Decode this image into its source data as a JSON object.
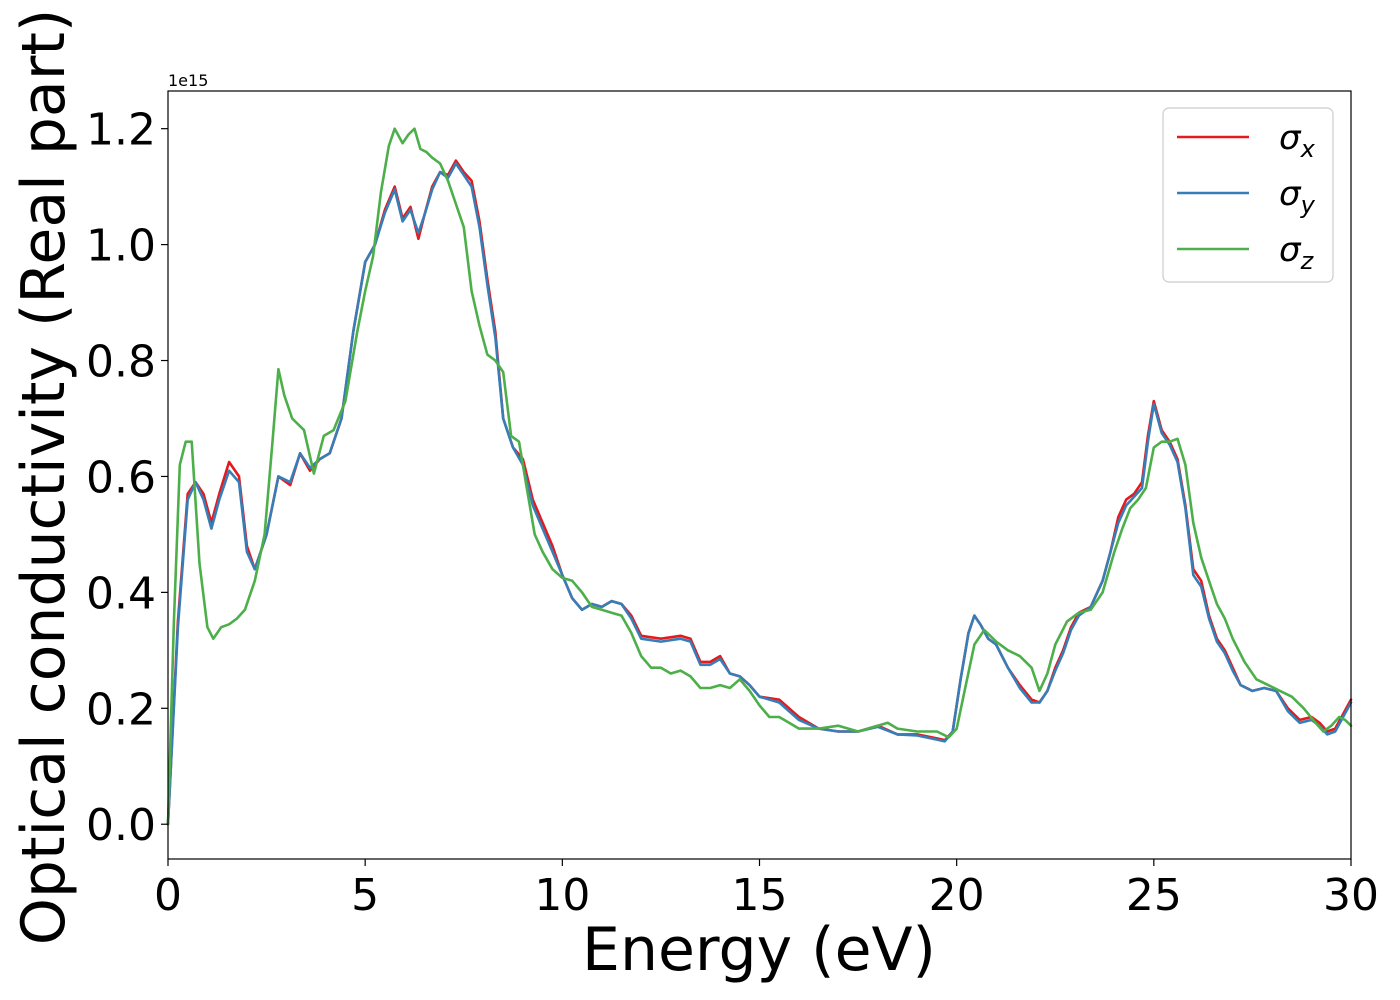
{
  "chart_data": {
    "type": "line",
    "title": "",
    "xlabel": "Energy (eV)",
    "ylabel": "Optical conductivity (Real part)",
    "y_offset_label": "1e15",
    "xlim": [
      0,
      30
    ],
    "ylim": [
      -0.06,
      1.265
    ],
    "xticks": [
      0,
      5,
      10,
      15,
      20,
      25,
      30
    ],
    "xtick_labels": [
      "0",
      "5",
      "10",
      "15",
      "20",
      "25",
      "30"
    ],
    "yticks": [
      0.0,
      0.2,
      0.4,
      0.6,
      0.8,
      1.0,
      1.2
    ],
    "ytick_labels": [
      "0.0",
      "0.2",
      "0.4",
      "0.6",
      "0.8",
      "1.0",
      "1.2"
    ],
    "grid": false,
    "legend_position": "top-right",
    "series": [
      {
        "name": "σx",
        "legend_symbol": "σ",
        "legend_sub": "x",
        "color": "#e41a1c",
        "x": [
          0,
          0.25,
          0.5,
          0.7,
          0.9,
          1.1,
          1.3,
          1.55,
          1.8,
          2.0,
          2.2,
          2.5,
          2.8,
          3.1,
          3.35,
          3.6,
          3.85,
          4.1,
          4.4,
          4.7,
          5.0,
          5.25,
          5.5,
          5.75,
          5.95,
          6.15,
          6.35,
          6.5,
          6.7,
          6.9,
          7.1,
          7.3,
          7.5,
          7.7,
          7.9,
          8.1,
          8.3,
          8.5,
          8.75,
          9.0,
          9.25,
          9.5,
          9.75,
          10.0,
          10.25,
          10.5,
          10.75,
          11.0,
          11.25,
          11.5,
          11.75,
          12.0,
          12.5,
          13.0,
          13.25,
          13.5,
          13.75,
          14.0,
          14.25,
          14.5,
          14.75,
          15.0,
          15.5,
          16.0,
          16.5,
          17.0,
          17.5,
          18.0,
          18.5,
          19.0,
          19.5,
          19.7,
          19.9,
          20.1,
          20.3,
          20.45,
          20.6,
          20.8,
          21.0,
          21.3,
          21.6,
          21.9,
          22.1,
          22.3,
          22.5,
          22.7,
          22.9,
          23.1,
          23.4,
          23.7,
          23.9,
          24.1,
          24.3,
          24.5,
          24.7,
          24.85,
          25.0,
          25.2,
          25.4,
          25.6,
          25.8,
          26.0,
          26.2,
          26.4,
          26.6,
          26.8,
          27.0,
          27.2,
          27.5,
          27.8,
          28.1,
          28.4,
          28.7,
          29.0,
          29.2,
          29.4,
          29.6,
          29.8,
          30.0
        ],
        "values": [
          0.0,
          0.35,
          0.57,
          0.59,
          0.57,
          0.52,
          0.57,
          0.625,
          0.6,
          0.48,
          0.44,
          0.5,
          0.6,
          0.585,
          0.64,
          0.61,
          0.63,
          0.64,
          0.7,
          0.85,
          0.97,
          1.0,
          1.06,
          1.1,
          1.045,
          1.065,
          1.01,
          1.05,
          1.1,
          1.125,
          1.12,
          1.145,
          1.125,
          1.11,
          1.04,
          0.94,
          0.85,
          0.7,
          0.65,
          0.63,
          0.56,
          0.52,
          0.48,
          0.43,
          0.39,
          0.37,
          0.38,
          0.375,
          0.385,
          0.38,
          0.36,
          0.325,
          0.32,
          0.325,
          0.32,
          0.28,
          0.28,
          0.29,
          0.26,
          0.255,
          0.24,
          0.22,
          0.215,
          0.185,
          0.165,
          0.16,
          0.16,
          0.17,
          0.155,
          0.155,
          0.148,
          0.145,
          0.16,
          0.25,
          0.33,
          0.36,
          0.345,
          0.32,
          0.31,
          0.27,
          0.24,
          0.215,
          0.21,
          0.23,
          0.27,
          0.3,
          0.34,
          0.365,
          0.375,
          0.42,
          0.47,
          0.53,
          0.56,
          0.57,
          0.59,
          0.67,
          0.73,
          0.68,
          0.66,
          0.63,
          0.55,
          0.44,
          0.42,
          0.36,
          0.32,
          0.3,
          0.27,
          0.24,
          0.23,
          0.235,
          0.23,
          0.2,
          0.18,
          0.185,
          0.175,
          0.16,
          0.165,
          0.19,
          0.215
        ]
      },
      {
        "name": "σy",
        "legend_symbol": "σ",
        "legend_sub": "y",
        "color": "#377eb8",
        "x": [
          0,
          0.25,
          0.5,
          0.7,
          0.9,
          1.1,
          1.3,
          1.55,
          1.8,
          2.0,
          2.2,
          2.5,
          2.8,
          3.1,
          3.35,
          3.6,
          3.85,
          4.1,
          4.4,
          4.7,
          5.0,
          5.25,
          5.5,
          5.75,
          5.95,
          6.15,
          6.35,
          6.5,
          6.7,
          6.9,
          7.1,
          7.3,
          7.5,
          7.7,
          7.9,
          8.1,
          8.3,
          8.5,
          8.75,
          9.0,
          9.25,
          9.5,
          9.75,
          10.0,
          10.25,
          10.5,
          10.75,
          11.0,
          11.25,
          11.5,
          11.75,
          12.0,
          12.5,
          13.0,
          13.25,
          13.5,
          13.75,
          14.0,
          14.25,
          14.5,
          14.75,
          15.0,
          15.5,
          16.0,
          16.5,
          17.0,
          17.5,
          18.0,
          18.5,
          19.0,
          19.5,
          19.7,
          19.9,
          20.1,
          20.3,
          20.45,
          20.6,
          20.8,
          21.0,
          21.3,
          21.6,
          21.9,
          22.1,
          22.3,
          22.5,
          22.7,
          22.9,
          23.1,
          23.4,
          23.7,
          23.9,
          24.1,
          24.3,
          24.5,
          24.7,
          24.85,
          25.0,
          25.2,
          25.4,
          25.6,
          25.8,
          26.0,
          26.2,
          26.4,
          26.6,
          26.8,
          27.0,
          27.2,
          27.5,
          27.8,
          28.1,
          28.4,
          28.7,
          29.0,
          29.2,
          29.4,
          29.6,
          29.8,
          30.0
        ],
        "values": [
          0.0,
          0.34,
          0.56,
          0.59,
          0.56,
          0.51,
          0.56,
          0.61,
          0.59,
          0.47,
          0.44,
          0.5,
          0.6,
          0.59,
          0.64,
          0.615,
          0.63,
          0.64,
          0.7,
          0.85,
          0.97,
          1.0,
          1.055,
          1.095,
          1.04,
          1.06,
          1.02,
          1.05,
          1.095,
          1.125,
          1.115,
          1.14,
          1.12,
          1.1,
          1.03,
          0.93,
          0.84,
          0.7,
          0.65,
          0.62,
          0.55,
          0.51,
          0.47,
          0.43,
          0.39,
          0.37,
          0.38,
          0.375,
          0.385,
          0.38,
          0.355,
          0.32,
          0.315,
          0.32,
          0.315,
          0.275,
          0.275,
          0.285,
          0.26,
          0.255,
          0.24,
          0.22,
          0.21,
          0.18,
          0.165,
          0.16,
          0.16,
          0.168,
          0.155,
          0.153,
          0.146,
          0.143,
          0.16,
          0.25,
          0.33,
          0.36,
          0.345,
          0.32,
          0.31,
          0.27,
          0.235,
          0.21,
          0.21,
          0.23,
          0.265,
          0.295,
          0.335,
          0.36,
          0.375,
          0.42,
          0.47,
          0.52,
          0.55,
          0.565,
          0.58,
          0.66,
          0.725,
          0.675,
          0.655,
          0.625,
          0.545,
          0.43,
          0.41,
          0.355,
          0.315,
          0.295,
          0.265,
          0.24,
          0.23,
          0.235,
          0.23,
          0.195,
          0.175,
          0.18,
          0.17,
          0.155,
          0.16,
          0.185,
          0.21
        ]
      },
      {
        "name": "σz",
        "legend_symbol": "σ",
        "legend_sub": "z",
        "color": "#4daf4a",
        "x": [
          0,
          0.15,
          0.3,
          0.45,
          0.6,
          0.8,
          1.0,
          1.15,
          1.35,
          1.55,
          1.75,
          1.95,
          2.2,
          2.45,
          2.65,
          2.8,
          2.95,
          3.15,
          3.45,
          3.7,
          3.95,
          4.2,
          4.5,
          4.8,
          5.0,
          5.2,
          5.4,
          5.6,
          5.75,
          5.95,
          6.1,
          6.25,
          6.4,
          6.55,
          6.7,
          6.9,
          7.1,
          7.3,
          7.5,
          7.7,
          7.9,
          8.1,
          8.3,
          8.5,
          8.7,
          8.9,
          9.1,
          9.3,
          9.5,
          9.75,
          10.0,
          10.25,
          10.5,
          10.75,
          11.0,
          11.25,
          11.5,
          11.75,
          12.0,
          12.25,
          12.5,
          12.75,
          13.0,
          13.25,
          13.5,
          13.75,
          14.0,
          14.25,
          14.5,
          14.75,
          15.0,
          15.25,
          15.5,
          15.75,
          16.0,
          16.5,
          17.0,
          17.5,
          18.0,
          18.25,
          18.5,
          19.0,
          19.5,
          19.8,
          20.0,
          20.2,
          20.45,
          20.7,
          21.0,
          21.3,
          21.6,
          21.9,
          22.1,
          22.3,
          22.5,
          22.8,
          23.1,
          23.4,
          23.7,
          24.0,
          24.2,
          24.4,
          24.6,
          24.8,
          25.0,
          25.2,
          25.4,
          25.6,
          25.8,
          26.0,
          26.2,
          26.4,
          26.6,
          26.8,
          27.0,
          27.3,
          27.6,
          27.9,
          28.2,
          28.5,
          28.8,
          29.1,
          29.3,
          29.5,
          29.7,
          29.85,
          30.0
        ],
        "values": [
          0.0,
          0.35,
          0.62,
          0.66,
          0.66,
          0.45,
          0.34,
          0.32,
          0.34,
          0.345,
          0.355,
          0.37,
          0.42,
          0.5,
          0.66,
          0.785,
          0.74,
          0.7,
          0.68,
          0.605,
          0.67,
          0.68,
          0.73,
          0.85,
          0.92,
          0.98,
          1.09,
          1.17,
          1.2,
          1.175,
          1.19,
          1.2,
          1.165,
          1.16,
          1.15,
          1.14,
          1.11,
          1.07,
          1.03,
          0.92,
          0.86,
          0.81,
          0.8,
          0.78,
          0.67,
          0.66,
          0.58,
          0.5,
          0.47,
          0.44,
          0.425,
          0.42,
          0.4,
          0.375,
          0.37,
          0.365,
          0.36,
          0.33,
          0.29,
          0.27,
          0.27,
          0.26,
          0.265,
          0.255,
          0.235,
          0.235,
          0.24,
          0.235,
          0.25,
          0.23,
          0.205,
          0.185,
          0.185,
          0.175,
          0.165,
          0.165,
          0.17,
          0.16,
          0.17,
          0.175,
          0.165,
          0.16,
          0.16,
          0.15,
          0.165,
          0.23,
          0.31,
          0.335,
          0.315,
          0.3,
          0.29,
          0.27,
          0.23,
          0.26,
          0.31,
          0.35,
          0.365,
          0.37,
          0.4,
          0.47,
          0.51,
          0.545,
          0.56,
          0.58,
          0.65,
          0.66,
          0.66,
          0.665,
          0.62,
          0.52,
          0.46,
          0.42,
          0.38,
          0.355,
          0.32,
          0.28,
          0.25,
          0.24,
          0.23,
          0.22,
          0.2,
          0.175,
          0.16,
          0.17,
          0.185,
          0.18,
          0.17
        ]
      }
    ]
  }
}
